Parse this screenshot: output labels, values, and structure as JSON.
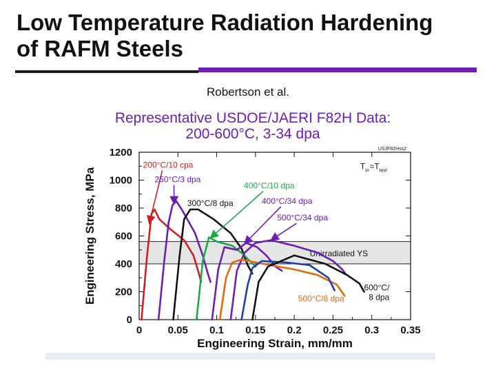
{
  "slide": {
    "title_line1": "Low Temperature Radiation Hardening",
    "title_line2": "of RAFM Steels",
    "credit": "Robertson et al."
  },
  "chart_data": {
    "type": "line",
    "title": "Representative USDOE/JAERI F82H Data:",
    "subtitle": "200-600°C, 3-34 dpa",
    "tag": "USJF82Hss2",
    "xlabel": "Engineering Strain, mm/mm",
    "ylabel": "Engineering Stress, MPa",
    "xlim": [
      0,
      0.35
    ],
    "ylim": [
      0,
      1200
    ],
    "xticks": [
      "0",
      "0.05",
      "0.1",
      "0.15",
      "0.2",
      "0.25",
      "0.3",
      "0.35"
    ],
    "yticks": [
      "0",
      "200",
      "400",
      "600",
      "800",
      "1000",
      "1200"
    ],
    "band": {
      "label": "Unirradiated YS",
      "y_low": 400,
      "y_high": 560,
      "color": "#e6e6e6"
    },
    "condition": {
      "main": "T",
      "sub1": "irr",
      "eq": "=T",
      "sub2": "test"
    },
    "series": [
      {
        "color": "#cc1f1f",
        "label": "200°C/10 cpa",
        "points": [
          [
            0.003,
            0
          ],
          [
            0.01,
            450
          ],
          [
            0.016,
            760
          ],
          [
            0.02,
            790
          ],
          [
            0.026,
            720
          ],
          [
            0.04,
            650
          ],
          [
            0.058,
            570
          ],
          [
            0.07,
            460
          ],
          [
            0.076,
            350
          ],
          [
            0.08,
            270
          ]
        ]
      },
      {
        "color": "#6a1fb0",
        "label": "250°C/3 dpa",
        "points": [
          [
            0.025,
            0
          ],
          [
            0.032,
            400
          ],
          [
            0.038,
            700
          ],
          [
            0.043,
            820
          ],
          [
            0.048,
            850
          ],
          [
            0.056,
            780
          ],
          [
            0.072,
            620
          ],
          [
            0.082,
            460
          ],
          [
            0.088,
            340
          ],
          [
            0.092,
            270
          ]
        ]
      },
      {
        "color": "#111111",
        "label": "300°C/8 dpa",
        "points": [
          [
            0.044,
            0
          ],
          [
            0.052,
            450
          ],
          [
            0.058,
            720
          ],
          [
            0.066,
            790
          ],
          [
            0.076,
            790
          ],
          [
            0.096,
            720
          ],
          [
            0.118,
            620
          ],
          [
            0.132,
            510
          ],
          [
            0.14,
            390
          ],
          [
            0.146,
            330
          ]
        ]
      },
      {
        "color": "#1fa84a",
        "label": "400°C/10 dpa",
        "points": [
          [
            0.074,
            0
          ],
          [
            0.082,
            420
          ],
          [
            0.09,
            590
          ],
          [
            0.1,
            560
          ],
          [
            0.12,
            530
          ],
          [
            0.134,
            470
          ],
          [
            0.15,
            380
          ]
        ]
      },
      {
        "color": "#6a1fb0",
        "label": "400°C/34 dpa",
        "points": [
          [
            0.094,
            0
          ],
          [
            0.102,
            360
          ],
          [
            0.11,
            520
          ],
          [
            0.126,
            500
          ],
          [
            0.138,
            550
          ],
          [
            0.152,
            520
          ],
          [
            0.164,
            460
          ],
          [
            0.176,
            380
          ],
          [
            0.184,
            350
          ]
        ]
      },
      {
        "color": "#6a1fb0",
        "label": "500°C/34 dpa",
        "points": [
          [
            0.118,
            0
          ],
          [
            0.126,
            350
          ],
          [
            0.136,
            480
          ],
          [
            0.15,
            550
          ],
          [
            0.17,
            570
          ],
          [
            0.2,
            530
          ],
          [
            0.23,
            480
          ],
          [
            0.25,
            420
          ],
          [
            0.262,
            360
          ],
          [
            0.266,
            330
          ]
        ]
      },
      {
        "color": "#e06a10",
        "label": "500°C/8 dpa",
        "points": [
          [
            0.104,
            0
          ],
          [
            0.112,
            300
          ],
          [
            0.12,
            410
          ],
          [
            0.132,
            430
          ],
          [
            0.16,
            400
          ],
          [
            0.2,
            360
          ],
          [
            0.23,
            320
          ],
          [
            0.255,
            250
          ],
          [
            0.265,
            170
          ]
        ]
      },
      {
        "color": "#1f3fa8",
        "label": "",
        "points": [
          [
            0.132,
            0
          ],
          [
            0.14,
            250
          ],
          [
            0.146,
            370
          ],
          [
            0.158,
            420
          ],
          [
            0.19,
            410
          ],
          [
            0.22,
            390
          ],
          [
            0.244,
            300
          ],
          [
            0.252,
            210
          ]
        ]
      },
      {
        "color": "#111111",
        "label": "600°C/ 8 dpa",
        "points": [
          [
            0.146,
            0
          ],
          [
            0.154,
            270
          ],
          [
            0.166,
            380
          ],
          [
            0.2,
            460
          ],
          [
            0.24,
            400
          ],
          [
            0.268,
            320
          ],
          [
            0.284,
            260
          ],
          [
            0.29,
            200
          ]
        ]
      }
    ],
    "annotations": [
      {
        "text": "200°C/10 cpa",
        "color": "#cc1f1f",
        "at": [
          0.005,
          1090
        ],
        "arrow": [
          0.013,
          690
        ]
      },
      {
        "text": "250°C/3 dpa",
        "color": "#6a1fb0",
        "at": [
          0.02,
          985
        ],
        "arrow": [
          0.045,
          830
        ]
      },
      {
        "text": "300°C/8 dpa",
        "color": "#111111",
        "at": [
          0.062,
          815
        ],
        "arrow": null
      },
      {
        "text": "400°C/10 dpa",
        "color": "#1fa84a",
        "at": [
          0.135,
          940
        ],
        "arrow": [
          0.092,
          585
        ]
      },
      {
        "text": "400°C/34 dpa",
        "color": "#6a1fb0",
        "at": [
          0.158,
          830
        ],
        "arrow": [
          0.136,
          545
        ]
      },
      {
        "text": "500°C/34 dpa",
        "color": "#6a1fb0",
        "at": [
          0.178,
          710
        ],
        "arrow": [
          0.17,
          570
        ]
      },
      {
        "text": "500°C/8 dpa",
        "color": "#e06a10",
        "at": [
          0.205,
          130
        ],
        "arrow": null
      },
      {
        "text": "600°C/",
        "color": "#111111",
        "at": [
          0.29,
          210
        ],
        "arrow": null
      },
      {
        "text": "8 dpa",
        "color": "#111111",
        "at": [
          0.296,
          140
        ],
        "arrow": null
      }
    ]
  }
}
